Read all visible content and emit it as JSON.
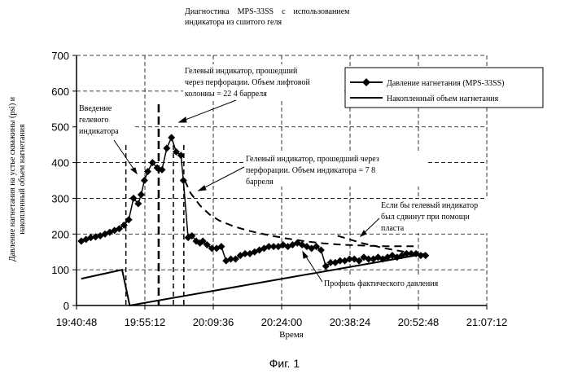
{
  "chart_data": {
    "type": "line",
    "title_lines": [
      "Диагностика    MPS-33SS    с    использованием",
      "индикатора из сшитого геля"
    ],
    "figure_caption": "Фиг. 1",
    "xlabel": "Время",
    "ylabel_lines": [
      "Давление нагнетания на устье скважины (psi) и",
      "накопленный объем нагнетания"
    ],
    "x_ticks": [
      "19:40:48",
      "19:55:12",
      "20:09:36",
      "20:24:00",
      "20:38:24",
      "20:52:48",
      "21:07:12"
    ],
    "y_ticks": [
      "0",
      "100",
      "200",
      "300",
      "400",
      "500",
      "600",
      "700"
    ],
    "ylim": [
      0,
      700
    ],
    "xlim_minutes": [
      0,
      86.4
    ],
    "grid": true,
    "legend_position": "top-right",
    "series": [
      {
        "name": "Давление нагнетания (MPS-33SS)",
        "marker": "diamond",
        "x_minutes": [
          1,
          2,
          3,
          4,
          5,
          6,
          7,
          8,
          9,
          10,
          11,
          12,
          13,
          13.6,
          14.3,
          15,
          16,
          17,
          18,
          19,
          20,
          21,
          22,
          22.5,
          23.5,
          24.3,
          25.2,
          26,
          26.6,
          27.5,
          28.5,
          29.5,
          30.5,
          31.5,
          32.5,
          33.5,
          34.5,
          35.5,
          36.5,
          37.5,
          38.5,
          39.5,
          40.5,
          41.5,
          42.5,
          43.5,
          44.5,
          45.5,
          46.5,
          47.5,
          48.5,
          49.5,
          50.5,
          51.5,
          52.5,
          53.5,
          54.5,
          55.5,
          56.5,
          57.5,
          58.5,
          59.5,
          60.5,
          61.5,
          62.5,
          63.5,
          64.5,
          65.5,
          66.5,
          67.5,
          68.5,
          69.5,
          70.5,
          71.5,
          72.5,
          73.5
        ],
        "values": [
          180,
          185,
          190,
          192,
          195,
          200,
          205,
          210,
          215,
          225,
          240,
          300,
          285,
          310,
          350,
          375,
          400,
          385,
          380,
          440,
          470,
          430,
          420,
          350,
          190,
          195,
          180,
          175,
          180,
          170,
          160,
          160,
          165,
          125,
          130,
          130,
          140,
          145,
          145,
          150,
          155,
          160,
          165,
          165,
          165,
          170,
          165,
          170,
          175,
          170,
          165,
          160,
          165,
          155,
          110,
          120,
          120,
          125,
          125,
          130,
          130,
          125,
          135,
          130,
          130,
          135,
          130,
          135,
          140,
          135,
          140,
          145,
          145,
          145,
          140,
          140
        ]
      },
      {
        "name": "Накопленный объем нагнетания",
        "x_minutes": [
          1,
          9.6,
          11.2,
          73.5
        ],
        "values": [
          75,
          100,
          0,
          145
        ]
      }
    ],
    "extra_lines": [
      {
        "style": "dashed",
        "x_minutes": [
          22.8,
          24,
          26,
          28,
          30,
          33,
          36,
          40,
          44,
          48,
          52,
          56,
          60,
          64,
          68,
          71
        ],
        "values": [
          350,
          315,
          280,
          255,
          238,
          222,
          210,
          198,
          188,
          180,
          174,
          170,
          168,
          166,
          166,
          166
        ]
      },
      {
        "style": "dashed",
        "x_minutes": [
          55,
          60,
          65,
          70,
          73.5
        ],
        "values": [
          195,
          175,
          160,
          148,
          142
        ]
      }
    ],
    "vertical_markers": [
      {
        "x_minutes": 10.4,
        "style": "dashed-thin"
      },
      {
        "x_minutes": 17.3,
        "style": "dashed-bold"
      },
      {
        "x_minutes": 20.4,
        "style": "dashed-thin"
      },
      {
        "x_minutes": 22.6,
        "style": "dashed-thin"
      }
    ],
    "annotations": [
      {
        "id": "intro",
        "lines": [
          "Введение",
          "гелевого",
          "индикатора"
        ]
      },
      {
        "id": "perf1",
        "lines": [
          "Гелевый    индикатор,    прошедший",
          "через перфорации. Объем лифтовой",
          "колонны = 22 4 барреля"
        ]
      },
      {
        "id": "perf2",
        "lines": [
          "Гелевый индикатор, прошедший    через",
          "перфорации.  Объем  индикатора  =  7 8",
          "барреля"
        ]
      },
      {
        "id": "ifgel",
        "lines": [
          "Если бы гелевый индикатор",
          "был  сдвинут  при  помощи",
          "пласта"
        ]
      },
      {
        "id": "profile",
        "lines": [
          "Профиль фактического давления"
        ]
      }
    ]
  }
}
